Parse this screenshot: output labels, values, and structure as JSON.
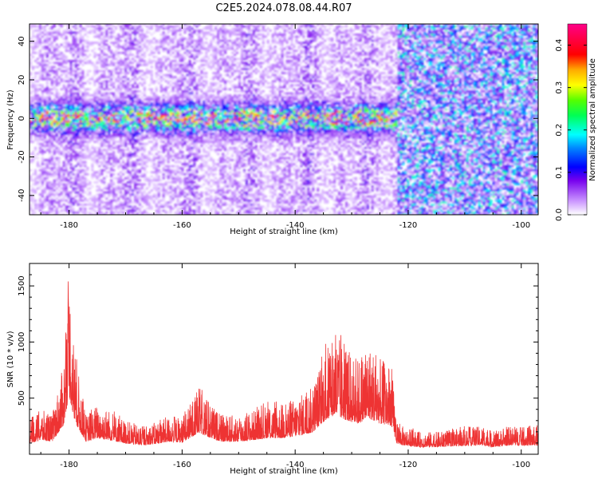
{
  "figure": {
    "title": "C2E5.2024.078.08.44.R07"
  },
  "chart_data": [
    {
      "type": "heatmap",
      "title": "",
      "xlabel": "Height of straight line (km)",
      "ylabel": "Frequency (Hz)",
      "xlim": [
        -187,
        -97
      ],
      "ylim": [
        -50,
        49
      ],
      "xticks": [
        -180,
        -160,
        -140,
        -120,
        -100
      ],
      "yticks": [
        -40,
        -20,
        0,
        20,
        40
      ],
      "colorbar": {
        "label": "Normalized spectral amplitude",
        "range": [
          0.0,
          0.45
        ],
        "ticks": [
          0.0,
          0.1,
          0.2,
          0.3,
          0.4
        ]
      },
      "features": {
        "main_band": {
          "center_hz": 0,
          "half_width_hz": 8,
          "x_range": [
            -187,
            -122
          ],
          "peak_amplitude": 0.45
        },
        "background_noise": {
          "amplitude": 0.03,
          "elevated_x_range": [
            -122,
            -97
          ],
          "elevated_amplitude": 0.1
        }
      }
    },
    {
      "type": "line",
      "title": "",
      "xlabel": "Height of straight line (km)",
      "ylabel": "SNR (10 * v/v)",
      "xlim": [
        -187,
        -97
      ],
      "ylim": [
        0,
        1700
      ],
      "xticks": [
        -180,
        -160,
        -140,
        -120,
        -100
      ],
      "yticks": [
        500,
        1000,
        1500
      ],
      "series": [
        {
          "color": "#ee3333",
          "x": [
            -187,
            -185,
            -183,
            -181,
            -180,
            -179,
            -177,
            -175,
            -173,
            -170,
            -167,
            -165,
            -162,
            -160,
            -157,
            -155,
            -153,
            -150,
            -147,
            -145,
            -142,
            -140,
            -137,
            -135,
            -133,
            -131,
            -129,
            -127,
            -125,
            -123,
            -122,
            -121,
            -118,
            -115,
            -112,
            -110,
            -107,
            -105,
            -102,
            -100,
            -97
          ],
          "values": [
            300,
            400,
            350,
            800,
            1650,
            900,
            350,
            450,
            400,
            300,
            250,
            280,
            350,
            320,
            600,
            450,
            350,
            350,
            400,
            450,
            450,
            500,
            600,
            900,
            1100,
            950,
            850,
            1000,
            850,
            800,
            300,
            250,
            200,
            200,
            220,
            240,
            250,
            200,
            250,
            240,
            250
          ]
        }
      ]
    }
  ]
}
